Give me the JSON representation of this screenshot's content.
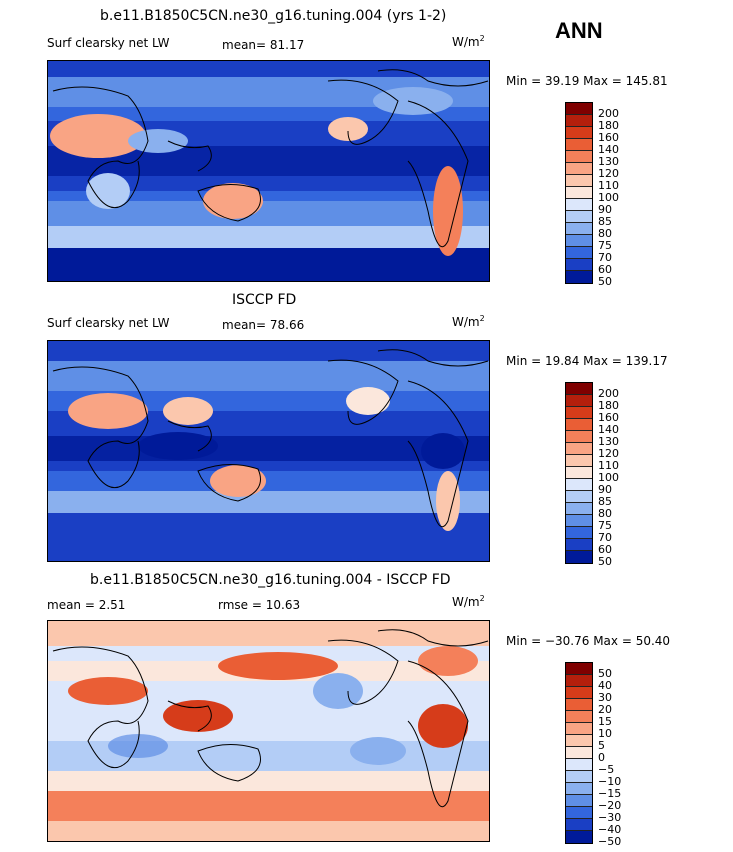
{
  "season": "ANN",
  "panels": [
    {
      "title": "b.e11.B1850C5CN.ne30_g16.tuning.004 (yrs 1-2)",
      "left_label": "Surf clearsky net LW",
      "center_label": "mean=  81.17",
      "units": "W/m",
      "units_sup": "2",
      "minmax": "Min =  39.19 Max = 145.81",
      "levels": [
        "200",
        "180",
        "160",
        "140",
        "130",
        "120",
        "110",
        "100",
        "90",
        "85",
        "80",
        "75",
        "70",
        "60",
        "50"
      ]
    },
    {
      "title": "ISCCP FD",
      "left_label": "Surf clearsky net LW",
      "center_label": "mean=  78.66",
      "units": "W/m",
      "units_sup": "2",
      "minmax": "Min =  19.84 Max = 139.17",
      "levels": [
        "200",
        "180",
        "160",
        "140",
        "130",
        "120",
        "110",
        "100",
        "90",
        "85",
        "80",
        "75",
        "70",
        "60",
        "50"
      ]
    },
    {
      "title": "b.e11.B1850C5CN.ne30_g16.tuning.004 - ISCCP FD",
      "left_label": "mean =   2.51",
      "center_label": "rmse =  10.63",
      "units": "W/m",
      "units_sup": "2",
      "minmax": "Min = −30.76 Max =  50.40",
      "levels": [
        "50",
        "40",
        "30",
        "20",
        "15",
        "10",
        "5",
        "0",
        "−5",
        "−10",
        "−15",
        "−20",
        "−30",
        "−40",
        "−50"
      ]
    }
  ],
  "colors": {
    "scale": [
      "#7f0000",
      "#b41f0c",
      "#d63c1a",
      "#ea5e35",
      "#f4805a",
      "#f9a484",
      "#fbc7ad",
      "#fbe7dc",
      "#dce7fb",
      "#b3cdf6",
      "#8ab0ee",
      "#5f8fe6",
      "#3366dd",
      "#1a3fc4",
      "#001a99"
    ]
  }
}
